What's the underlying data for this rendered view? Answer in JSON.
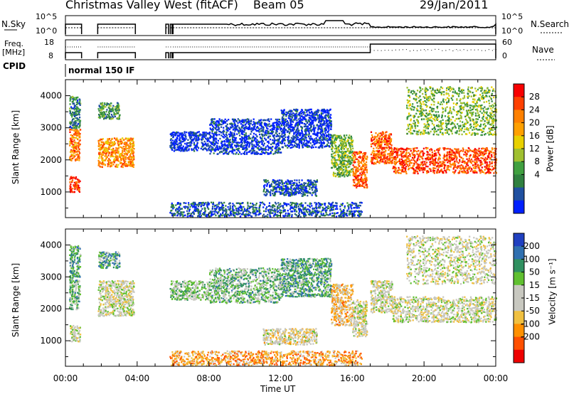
{
  "header": {
    "title": "Christmas Valley West (fitACF)",
    "beam": "Beam 05",
    "date": "29/Jan/2011"
  },
  "top_panels": {
    "nsky_label": "N.Sky",
    "nsky_ticks": [
      "10^5",
      "10^0"
    ],
    "nsearch_label": "N.Search",
    "nsearch_ticks": [
      "10^5",
      "10^0"
    ],
    "freq_label": "Freq.",
    "freq_unit": "[MHz]",
    "freq_ticks": [
      "18",
      "8"
    ],
    "nave_label": "Nave",
    "nave_ticks": [
      "60",
      "0"
    ],
    "cpid_label": "CPID",
    "cpid_text": "normal 150 IF"
  },
  "time_axis": {
    "label": "Time UT",
    "ticks": [
      "00:00",
      "04:00",
      "08:00",
      "12:00",
      "16:00",
      "20:00",
      "00:00"
    ]
  },
  "chart_data": [
    {
      "type": "heatmap",
      "name": "power",
      "ylabel": "Slant Range [km]",
      "yticks": [
        1000,
        2000,
        3000,
        4000
      ],
      "ylim": [
        200,
        4500
      ],
      "xlim_hours": [
        0,
        24
      ],
      "colorbar": {
        "label": "Power [dB]",
        "ticks": [
          "28",
          "24",
          "20",
          "16",
          "12",
          "8",
          "4"
        ],
        "colors": [
          "#f80000",
          "#ff4000",
          "#ff8000",
          "#ffa000",
          "#e8d000",
          "#a0c030",
          "#40a040",
          "#308040",
          "#2050a0",
          "#0020ff"
        ]
      },
      "regions": [
        {
          "t0": 0.2,
          "t1": 0.8,
          "r0": 1000,
          "r1": 1500,
          "level": 0.9
        },
        {
          "t0": 0.2,
          "t1": 0.8,
          "r0": 2000,
          "r1": 3000,
          "level": 0.75
        },
        {
          "t0": 0.2,
          "t1": 0.8,
          "r0": 3000,
          "r1": 4000,
          "level": 0.25
        },
        {
          "t0": 1.8,
          "t1": 3.8,
          "r0": 1800,
          "r1": 2700,
          "level": 0.7
        },
        {
          "t0": 1.8,
          "t1": 3.0,
          "r0": 3300,
          "r1": 3800,
          "level": 0.3
        },
        {
          "t0": 5.8,
          "t1": 8.0,
          "r0": 2300,
          "r1": 2900,
          "level": 0.05
        },
        {
          "t0": 8.0,
          "t1": 12.0,
          "r0": 2200,
          "r1": 3300,
          "level": 0.08
        },
        {
          "t0": 12.0,
          "t1": 14.8,
          "r0": 2400,
          "r1": 3600,
          "level": 0.07
        },
        {
          "t0": 14.8,
          "t1": 16.0,
          "r0": 1500,
          "r1": 2800,
          "level": 0.4
        },
        {
          "t0": 16.0,
          "t1": 16.8,
          "r0": 1150,
          "r1": 2300,
          "level": 0.8
        },
        {
          "t0": 17.0,
          "t1": 18.2,
          "r0": 1900,
          "r1": 2900,
          "level": 0.8
        },
        {
          "t0": 18.2,
          "t1": 24.0,
          "r0": 1600,
          "r1": 2400,
          "level": 0.85
        },
        {
          "t0": 5.8,
          "t1": 16.5,
          "r0": 250,
          "r1": 700,
          "level": 0.15
        },
        {
          "t0": 11.0,
          "t1": 14.0,
          "r0": 900,
          "r1": 1400,
          "level": 0.12
        },
        {
          "t0": 19.0,
          "t1": 24.0,
          "r0": 2800,
          "r1": 4300,
          "level": 0.4
        }
      ]
    },
    {
      "type": "heatmap",
      "name": "velocity",
      "ylabel": "Slant Range [km]",
      "yticks": [
        1000,
        2000,
        3000,
        4000
      ],
      "ylim": [
        200,
        4500
      ],
      "xlim_hours": [
        0,
        24
      ],
      "colorbar": {
        "label": "Velocity [m s⁻¹]",
        "ticks": [
          "200",
          "100",
          "50",
          "15",
          "-15",
          "-50",
          "-100",
          "-200"
        ],
        "colors": [
          "#2040c0",
          "#3070b0",
          "#309060",
          "#60c030",
          "#c8c8c0",
          "#c8c8c0",
          "#f0c040",
          "#ff9000",
          "#ff5000",
          "#ee0000"
        ]
      },
      "regions": [
        {
          "t0": 0.2,
          "t1": 0.8,
          "r0": 1000,
          "r1": 1500,
          "level": 0.5
        },
        {
          "t0": 0.2,
          "t1": 0.8,
          "r0": 2000,
          "r1": 3000,
          "level": 0.65
        },
        {
          "t0": 0.2,
          "t1": 0.8,
          "r0": 3000,
          "r1": 4000,
          "level": 0.7
        },
        {
          "t0": 1.8,
          "t1": 3.8,
          "r0": 1800,
          "r1": 2900,
          "level": 0.5
        },
        {
          "t0": 1.8,
          "t1": 3.0,
          "r0": 3300,
          "r1": 3800,
          "level": 0.7
        },
        {
          "t0": 5.8,
          "t1": 8.0,
          "r0": 2300,
          "r1": 2900,
          "level": 0.6
        },
        {
          "t0": 8.0,
          "t1": 12.0,
          "r0": 2200,
          "r1": 3300,
          "level": 0.65
        },
        {
          "t0": 12.0,
          "t1": 14.8,
          "r0": 2400,
          "r1": 3600,
          "level": 0.7
        },
        {
          "t0": 14.8,
          "t1": 16.0,
          "r0": 1500,
          "r1": 2800,
          "level": 0.35
        },
        {
          "t0": 16.0,
          "t1": 16.8,
          "r0": 1150,
          "r1": 2300,
          "level": 0.5
        },
        {
          "t0": 17.0,
          "t1": 18.2,
          "r0": 1900,
          "r1": 2900,
          "level": 0.5
        },
        {
          "t0": 18.2,
          "t1": 24.0,
          "r0": 1600,
          "r1": 2400,
          "level": 0.5
        },
        {
          "t0": 5.8,
          "t1": 16.5,
          "r0": 250,
          "r1": 700,
          "level": 0.3
        },
        {
          "t0": 11.0,
          "t1": 14.0,
          "r0": 900,
          "r1": 1400,
          "level": 0.45
        },
        {
          "t0": 19.0,
          "t1": 24.0,
          "r0": 2800,
          "r1": 4300,
          "level": 0.5
        }
      ]
    }
  ]
}
